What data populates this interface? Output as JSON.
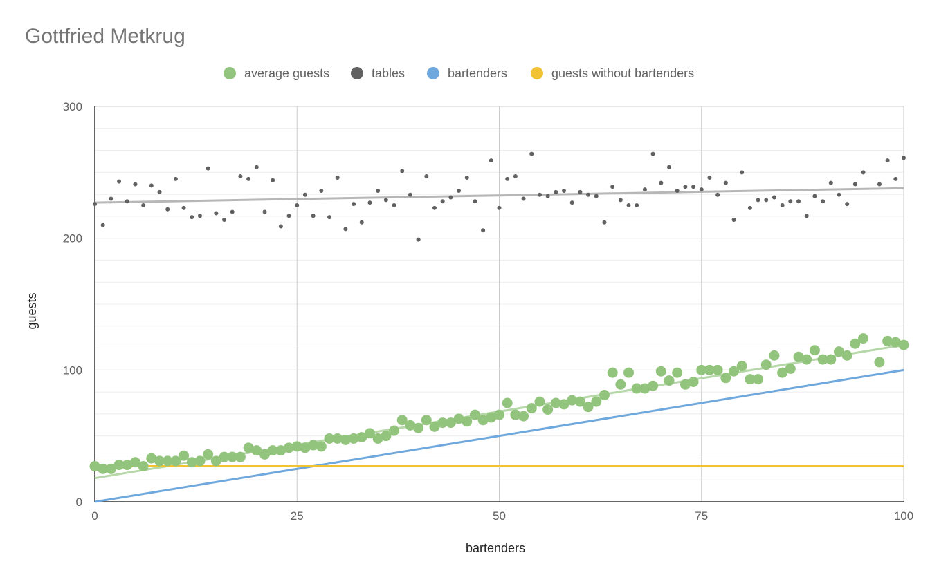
{
  "chart_data": {
    "type": "scatter",
    "title": "Gottfried Metkrug",
    "xlabel": "bartenders",
    "ylabel": "guests",
    "xlim": [
      0,
      100
    ],
    "ylim": [
      0,
      300
    ],
    "x_ticks": [
      "0",
      "25",
      "50",
      "75",
      "100"
    ],
    "y_ticks": [
      "0",
      "100",
      "200",
      "300"
    ],
    "x_tick_values": [
      0,
      25,
      50,
      75,
      100
    ],
    "y_tick_values": [
      0,
      100,
      200,
      300
    ],
    "y_minor_step": 16.667,
    "grid": true,
    "legend_position": "top",
    "legend": [
      {
        "label": "average guests",
        "color": "#93c47d"
      },
      {
        "label": "tables",
        "color": "#616161"
      },
      {
        "label": "bartenders",
        "color": "#6fa8dc"
      },
      {
        "label": "guests without bartenders",
        "color": "#f1c232"
      }
    ],
    "series": [
      {
        "name": "average guests",
        "kind": "scatter",
        "color": "#93c47d",
        "x": [
          0,
          1,
          2,
          3,
          4,
          5,
          6,
          7,
          8,
          9,
          10,
          11,
          12,
          13,
          14,
          15,
          16,
          17,
          18,
          19,
          20,
          21,
          22,
          23,
          24,
          25,
          26,
          27,
          28,
          29,
          30,
          31,
          32,
          33,
          34,
          35,
          36,
          37,
          38,
          39,
          40,
          41,
          42,
          43,
          44,
          45,
          46,
          47,
          48,
          49,
          50,
          51,
          52,
          53,
          54,
          55,
          56,
          57,
          58,
          59,
          60,
          61,
          62,
          63,
          64,
          65,
          66,
          67,
          68,
          69,
          70,
          71,
          72,
          73,
          74,
          75,
          76,
          77,
          78,
          79,
          80,
          81,
          82,
          83,
          84,
          85,
          86,
          87,
          88,
          89,
          90,
          91,
          92,
          93,
          94,
          95,
          97,
          98,
          99,
          100
        ],
        "y": [
          27,
          25,
          25,
          28,
          28,
          30,
          27,
          33,
          31,
          31,
          31,
          35,
          30,
          31,
          36,
          31,
          34,
          34,
          34,
          41,
          39,
          36,
          39,
          39,
          41,
          42,
          41,
          43,
          42,
          48,
          48,
          47,
          48,
          49,
          52,
          48,
          50,
          54,
          62,
          58,
          56,
          62,
          57,
          60,
          60,
          63,
          61,
          66,
          62,
          64,
          66,
          75,
          66,
          65,
          71,
          76,
          70,
          75,
          74,
          77,
          76,
          72,
          76,
          81,
          98,
          89,
          98,
          86,
          86,
          88,
          99,
          92,
          98,
          89,
          91,
          100,
          100,
          100,
          94,
          99,
          103,
          93,
          93,
          104,
          111,
          98,
          101,
          110,
          108,
          115,
          108,
          108,
          114,
          111,
          120,
          124,
          106,
          122,
          121,
          119
        ]
      },
      {
        "name": "tables",
        "kind": "scatter",
        "color": "#616161",
        "x": [
          0,
          1,
          2,
          3,
          4,
          5,
          6,
          7,
          8,
          9,
          10,
          11,
          12,
          13,
          14,
          15,
          16,
          17,
          18,
          19,
          20,
          21,
          22,
          23,
          24,
          25,
          26,
          27,
          28,
          29,
          30,
          31,
          32,
          33,
          34,
          35,
          36,
          37,
          38,
          39,
          40,
          41,
          42,
          43,
          44,
          45,
          46,
          47,
          48,
          49,
          50,
          51,
          52,
          53,
          54,
          55,
          56,
          57,
          58,
          59,
          60,
          61,
          62,
          63,
          64,
          65,
          66,
          67,
          68,
          69,
          70,
          71,
          72,
          73,
          74,
          75,
          76,
          77,
          78,
          79,
          80,
          81,
          82,
          83,
          84,
          85,
          86,
          87,
          88,
          89,
          90,
          91,
          92,
          93,
          94,
          95,
          97,
          98,
          99,
          100
        ],
        "y": [
          226,
          210,
          230,
          243,
          228,
          241,
          225,
          240,
          235,
          222,
          245,
          223,
          216,
          217,
          253,
          219,
          214,
          220,
          247,
          245,
          254,
          220,
          244,
          209,
          217,
          225,
          233,
          217,
          236,
          216,
          246,
          207,
          226,
          212,
          227,
          236,
          229,
          225,
          251,
          233,
          199,
          247,
          223,
          228,
          231,
          236,
          246,
          228,
          206,
          259,
          223,
          245,
          247,
          230,
          264,
          233,
          232,
          235,
          236,
          227,
          235,
          233,
          232,
          212,
          239,
          229,
          225,
          225,
          237,
          264,
          242,
          254,
          236,
          239,
          239,
          237,
          246,
          233,
          242,
          214,
          250,
          223,
          229,
          229,
          231,
          225,
          228,
          228,
          217,
          232,
          228,
          242,
          233,
          226,
          241,
          250,
          241,
          259,
          245,
          261
        ]
      },
      {
        "name": "bartenders",
        "kind": "line",
        "color": "#6fa8dc",
        "x": [
          0,
          100
        ],
        "y": [
          0,
          100
        ]
      },
      {
        "name": "guests without bartenders",
        "kind": "line",
        "color": "#f1c232",
        "x": [
          0,
          100
        ],
        "y": [
          27,
          27
        ]
      }
    ],
    "trendlines": [
      {
        "series": "average guests",
        "color": "#b6d7a8",
        "x": [
          0,
          100
        ],
        "y": [
          18,
          119
        ]
      },
      {
        "series": "tables",
        "color": "#b7b7b7",
        "x": [
          0,
          100
        ],
        "y": [
          227,
          238
        ]
      }
    ]
  }
}
